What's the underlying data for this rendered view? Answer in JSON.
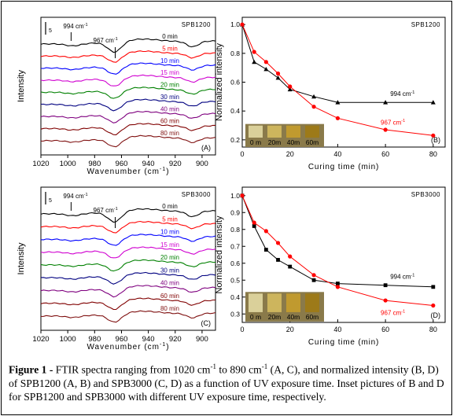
{
  "panels": [
    {
      "id": "A",
      "kind": "ftir",
      "sample": "SPB1200",
      "panel_label": "(A)",
      "xlabel_main": "Wavenumber (cm",
      "xlabel_sup": "-1",
      "xlabel_end": ")",
      "ylabel": "Intensity",
      "scalebar_label": "5",
      "ticks": [
        "1020",
        "1000",
        "980",
        "960",
        "940",
        "920",
        "900"
      ],
      "peak1": {
        "main": "994 cm",
        "sup": "-1"
      },
      "peak2": {
        "main": "967 cm",
        "sup": "-1"
      },
      "spectra": [
        {
          "label": "0 min",
          "color": "#000000"
        },
        {
          "label": "5 min",
          "color": "#ff0000"
        },
        {
          "label": "10 min",
          "color": "#0000ff"
        },
        {
          "label": "15 min",
          "color": "#d000d0"
        },
        {
          "label": "20 min",
          "color": "#008000"
        },
        {
          "label": "30 min",
          "color": "#000080"
        },
        {
          "label": "40 min",
          "color": "#7f007f"
        },
        {
          "label": "60 min",
          "color": "#800000"
        },
        {
          "label": "80 min",
          "color": "#7f1010"
        }
      ]
    },
    {
      "id": "C",
      "kind": "ftir",
      "sample": "SPB3000",
      "panel_label": "(C)",
      "xlabel_main": "Wavenumber (cm",
      "xlabel_sup": "-1",
      "xlabel_end": ")",
      "ylabel": "Intensity",
      "scalebar_label": "5",
      "ticks": [
        "1020",
        "1000",
        "980",
        "960",
        "940",
        "920",
        "900"
      ],
      "peak1": {
        "main": "994 cm",
        "sup": "-1"
      },
      "peak2": {
        "main": "967 cm",
        "sup": "-1"
      },
      "spectra": [
        {
          "label": "0 min",
          "color": "#000000"
        },
        {
          "label": "5 min",
          "color": "#ff0000"
        },
        {
          "label": "10 min",
          "color": "#0000ff"
        },
        {
          "label": "15 min",
          "color": "#d000d0"
        },
        {
          "label": "20 min",
          "color": "#008000"
        },
        {
          "label": "30 min",
          "color": "#000080"
        },
        {
          "label": "40 min",
          "color": "#7f007f"
        },
        {
          "label": "60 min",
          "color": "#800000"
        },
        {
          "label": "80 min",
          "color": "#7f1010"
        }
      ]
    }
  ],
  "chart_data": [
    {
      "type": "line",
      "title": "SPB1200",
      "panel_label": "(B)",
      "xlabel": "Curing time (min)",
      "ylabel": "Normalized intensity",
      "xlim": [
        0,
        85
      ],
      "ylim": [
        0.15,
        1.05
      ],
      "xticks": [
        "0",
        "20",
        "40",
        "60",
        "80"
      ],
      "yticks": [
        "0.2",
        "0.4",
        "0.6",
        "0.8",
        "1.0"
      ],
      "series": [
        {
          "name": "994 cm",
          "sup": "-1",
          "color": "#000000",
          "marker": "triangle",
          "x": [
            0,
            5,
            10,
            15,
            20,
            30,
            40,
            60,
            80
          ],
          "y": [
            1.0,
            0.74,
            0.69,
            0.63,
            0.55,
            0.5,
            0.46,
            0.46,
            0.46
          ]
        },
        {
          "name": "967 cm",
          "sup": "-1",
          "color": "#ff0000",
          "marker": "circle",
          "x": [
            0,
            5,
            10,
            15,
            20,
            30,
            40,
            60,
            80
          ],
          "y": [
            1.0,
            0.81,
            0.74,
            0.66,
            0.57,
            0.43,
            0.35,
            0.27,
            0.23
          ]
        }
      ],
      "inset_labels": [
        "0 m",
        "20m",
        "40m",
        "60m"
      ]
    },
    {
      "type": "line",
      "title": "SPB3000",
      "panel_label": "(D)",
      "xlabel": "Curing time (min)",
      "ylabel": "Normalized intensity",
      "xlim": [
        0,
        85
      ],
      "ylim": [
        0.25,
        1.05
      ],
      "xticks": [
        "0",
        "20",
        "40",
        "60",
        "80"
      ],
      "yticks": [
        "0.3",
        "0.4",
        "0.5",
        "0.6",
        "0.7",
        "0.8",
        "0.9",
        "1.0"
      ],
      "series": [
        {
          "name": "994 cm",
          "sup": "-1",
          "color": "#000000",
          "marker": "square",
          "x": [
            0,
            5,
            10,
            15,
            20,
            30,
            40,
            60,
            80
          ],
          "y": [
            1.0,
            0.82,
            0.68,
            0.62,
            0.58,
            0.5,
            0.48,
            0.47,
            0.46
          ]
        },
        {
          "name": "967 cm",
          "sup": "-1",
          "color": "#ff0000",
          "marker": "circle",
          "x": [
            0,
            5,
            10,
            15,
            20,
            30,
            40,
            60,
            80
          ],
          "y": [
            1.0,
            0.84,
            0.79,
            0.72,
            0.64,
            0.53,
            0.46,
            0.38,
            0.35
          ]
        }
      ],
      "inset_labels": [
        "0 m",
        "20m",
        "40m",
        "60m"
      ]
    }
  ],
  "caption": {
    "lead": "Figure 1 -",
    "p1": " FTIR spectra ranging from 1020 cm",
    "sup1": "-1",
    "p2": " to 890 cm",
    "sup2": "-1",
    "p3": " (A, C), and normalized intensity (B, D) of SPB1200 (A, B) and SPB3000 (C, D) as a function of UV exposure time. Inset pictures of B and D for SPB1200 and SPB3000 with different UV exposure time, respectively."
  }
}
